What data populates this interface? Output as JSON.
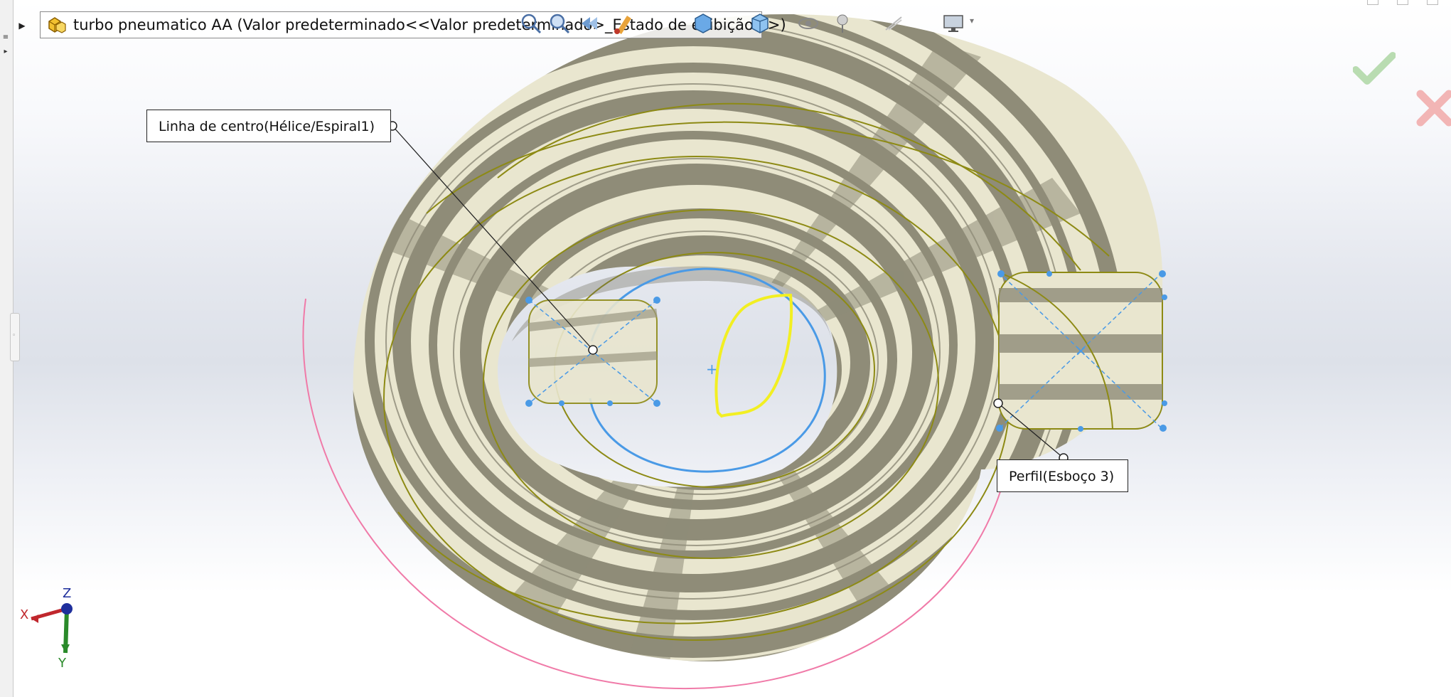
{
  "document": {
    "title": "turbo pneumatico AA  (Valor predeterminado<<Valor predeterminado>_Estado de exibição 1>)",
    "icon": "part-assembly-icon"
  },
  "callouts": {
    "centerline": "Linha de centro(Hélice/Espiral1)",
    "profile": "Perfil(Esboço 3)"
  },
  "triad": {
    "x_label": "X",
    "y_label": "Y",
    "z_label": "Z"
  },
  "confirm": {
    "ok_icon": "green-check-icon",
    "cancel_icon": "red-x-icon"
  },
  "heads_up_toolbar": {
    "icons": [
      "zoom-to-fit-icon",
      "zoom-area-icon",
      "previous-view-icon",
      "section-view-icon",
      "view-orientation-icon",
      "display-style-icon",
      "hide-show-icon",
      "edit-appearance-icon",
      "apply-scene-icon",
      "view-settings-icon",
      "monitor-icon"
    ]
  },
  "colors": {
    "surface_light": "#e9e6cf",
    "surface_dark": "#8f8c78",
    "edge_olive": "#8d8a14",
    "profile_blue": "#4a9ae6",
    "selection_yellow": "#f2ef22",
    "pink_curve": "#f07aa8"
  }
}
